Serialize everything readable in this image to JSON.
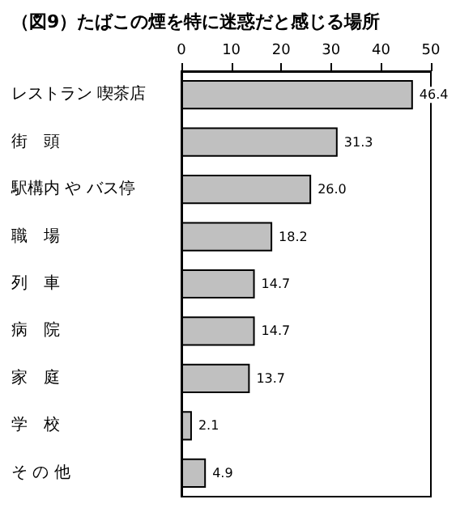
{
  "chart_data": {
    "type": "bar",
    "orientation": "horizontal",
    "title": "（図9）たばこの煙を特に迷惑だと感じる場所",
    "categories": [
      "レストラン 喫茶店",
      "街　頭",
      "駅構内 や バス停",
      "職　場",
      "列　車",
      "病　院",
      "家　庭",
      "学　校",
      "そ の 他"
    ],
    "values": [
      46.4,
      31.3,
      26.0,
      18.2,
      14.7,
      14.7,
      13.7,
      2.1,
      4.9
    ],
    "value_labels": [
      "46.4",
      "31.3",
      "26.0",
      "18.2",
      "14.7",
      "14.7",
      "13.7",
      "2.1",
      "4.9"
    ],
    "color": "#c0c0c0",
    "xlim": [
      0,
      50
    ],
    "xticks": [
      0,
      10,
      20,
      30,
      40,
      50
    ],
    "grid": false
  }
}
